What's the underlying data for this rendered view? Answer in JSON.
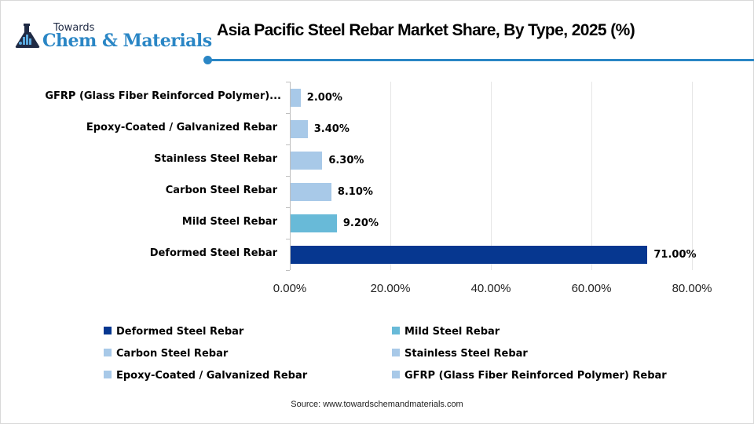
{
  "brand": {
    "top": "Towards",
    "main": "Chem & Materials",
    "accent_color": "#2a86c5",
    "icon": "flask-icon"
  },
  "header": {
    "title": "Asia Pacific Steel Rebar Market Share, By Type, 2025 (%)"
  },
  "chart_data": {
    "type": "bar",
    "orientation": "horizontal",
    "title": "Asia Pacific Steel Rebar Market Share, By Type, 2025 (%)",
    "xlabel": "",
    "ylabel": "",
    "xlim": [
      0,
      80
    ],
    "x_ticks": [
      "0.00%",
      "20.00%",
      "40.00%",
      "60.00%",
      "80.00%"
    ],
    "grid": true,
    "legend_position": "bottom",
    "categories": [
      "Deformed Steel Rebar",
      "Mild Steel Rebar",
      "Carbon Steel Rebar",
      "Stainless Steel Rebar",
      "Epoxy-Coated / Galvanized Rebar",
      "GFRP (Glass Fiber Reinforced Polymer) Rebar"
    ],
    "axis_labels": [
      "Deformed Steel Rebar",
      "Mild Steel Rebar",
      "Carbon Steel Rebar",
      "Stainless Steel Rebar",
      "Epoxy-Coated / Galvanized Rebar",
      "GFRP (Glass Fiber Reinforced Polymer)..."
    ],
    "values": [
      71.0,
      9.2,
      8.1,
      6.3,
      3.4,
      2.0
    ],
    "value_labels": [
      "71.00%",
      "9.20%",
      "8.10%",
      "6.30%",
      "3.40%",
      "2.00%"
    ],
    "colors": [
      "#063790",
      "#68bad8",
      "#a8c9e8",
      "#a8c9e8",
      "#a8c9e8",
      "#a8c9e8"
    ]
  },
  "legend": {
    "items": [
      {
        "label": "Deformed Steel Rebar",
        "color": "#063790"
      },
      {
        "label": "Mild Steel Rebar",
        "color": "#68bad8"
      },
      {
        "label": "Carbon Steel Rebar",
        "color": "#a8c9e8"
      },
      {
        "label": "Stainless Steel Rebar",
        "color": "#a8c9e8"
      },
      {
        "label": "Epoxy-Coated / Galvanized Rebar",
        "color": "#a8c9e8"
      },
      {
        "label": "GFRP (Glass Fiber Reinforced Polymer) Rebar",
        "color": "#a8c9e8"
      }
    ]
  },
  "footer": {
    "source": "Source: www.towardschemandmaterials.com"
  }
}
